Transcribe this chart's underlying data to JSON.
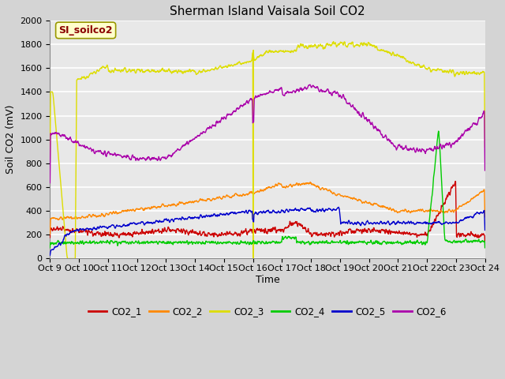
{
  "title": "Sherman Island Vaisala Soil CO2",
  "ylabel": "Soil CO2 (mV)",
  "xlabel": "Time",
  "watermark": "SI_soilco2",
  "ylim": [
    0,
    2000
  ],
  "xlim": [
    0,
    15
  ],
  "x_tick_labels": [
    "Oct 9",
    "Oct 10",
    "Oct 11",
    "Oct 12",
    "Oct 13",
    "Oct 14",
    "Oct 15",
    "Oct 16",
    "Oct 17",
    "Oct 18",
    "Oct 19",
    "Oct 20",
    "Oct 21",
    "Oct 22",
    "Oct 23",
    "Oct 24"
  ],
  "bg_color": "#e8e8e8",
  "grid_color": "#ffffff",
  "legend_entries": [
    "CO2_1",
    "CO2_2",
    "CO2_3",
    "CO2_4",
    "CO2_5",
    "CO2_6"
  ],
  "legend_colors": [
    "#cc0000",
    "#ff8800",
    "#dddd00",
    "#00cc00",
    "#0000cc",
    "#aa00aa"
  ],
  "title_fontsize": 11,
  "tick_fontsize": 8,
  "label_fontsize": 9,
  "watermark_fontsize": 9,
  "line_width": 1.0
}
